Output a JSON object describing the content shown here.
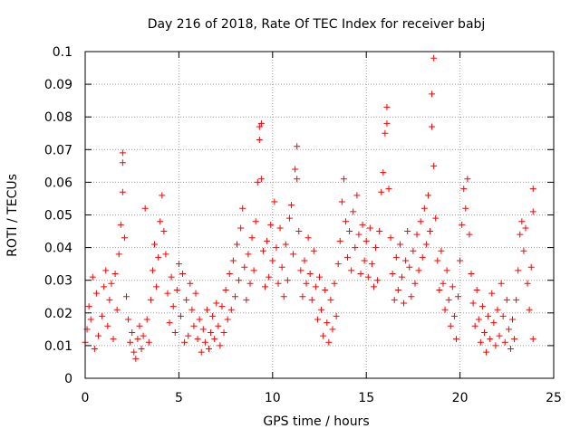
{
  "chart_data": {
    "type": "scatter",
    "title": "Day 216 of 2018, Rate Of TEC Index for receiver babj",
    "xlabel": "GPS time / hours",
    "ylabel": "ROTI / TECUs",
    "xlim": [
      0,
      25
    ],
    "ylim": [
      0,
      0.1
    ],
    "xticks": [
      0,
      5,
      10,
      15,
      20,
      25
    ],
    "xtick_labels": [
      "0",
      "5",
      "10",
      "15",
      "20",
      "25"
    ],
    "yticks": [
      0,
      0.01,
      0.02,
      0.03,
      0.04,
      0.05,
      0.06,
      0.07,
      0.08,
      0.09,
      0.1
    ],
    "ytick_labels": [
      "0",
      "0.01",
      "0.02",
      "0.03",
      "0.04",
      "0.05",
      "0.06",
      "0.07",
      "0.08",
      "0.09",
      "0.1"
    ],
    "grid": true,
    "marker": "+",
    "marker_color": "#ff0000",
    "series": [
      {
        "name": "ROTI",
        "points": [
          [
            0.0,
            0.011
          ],
          [
            0.1,
            0.015
          ],
          [
            0.2,
            0.022
          ],
          [
            0.3,
            0.018
          ],
          [
            0.4,
            0.031
          ],
          [
            0.5,
            0.009
          ],
          [
            0.6,
            0.026
          ],
          [
            0.7,
            0.013
          ],
          [
            0.9,
            0.019
          ],
          [
            1.0,
            0.028
          ],
          [
            1.1,
            0.033
          ],
          [
            1.2,
            0.016
          ],
          [
            1.3,
            0.024
          ],
          [
            1.4,
            0.029
          ],
          [
            1.5,
            0.012
          ],
          [
            1.6,
            0.032
          ],
          [
            1.7,
            0.021
          ],
          [
            1.8,
            0.038
          ],
          [
            1.9,
            0.047
          ],
          [
            2.0,
            0.066
          ],
          [
            2.0,
            0.069
          ],
          [
            2.0,
            0.057
          ],
          [
            2.1,
            0.043
          ],
          [
            2.2,
            0.025
          ],
          [
            2.3,
            0.018
          ],
          [
            2.4,
            0.011
          ],
          [
            2.5,
            0.014
          ],
          [
            2.6,
            0.008
          ],
          [
            2.7,
            0.006
          ],
          [
            2.8,
            0.012
          ],
          [
            2.9,
            0.016
          ],
          [
            3.0,
            0.009
          ],
          [
            3.1,
            0.013
          ],
          [
            3.2,
            0.052
          ],
          [
            3.3,
            0.018
          ],
          [
            3.4,
            0.011
          ],
          [
            3.5,
            0.024
          ],
          [
            3.6,
            0.033
          ],
          [
            3.7,
            0.041
          ],
          [
            3.8,
            0.028
          ],
          [
            3.9,
            0.037
          ],
          [
            4.0,
            0.048
          ],
          [
            4.1,
            0.056
          ],
          [
            4.2,
            0.045
          ],
          [
            4.3,
            0.038
          ],
          [
            4.4,
            0.026
          ],
          [
            4.5,
            0.017
          ],
          [
            4.6,
            0.031
          ],
          [
            4.7,
            0.022
          ],
          [
            4.8,
            0.014
          ],
          [
            4.9,
            0.027
          ],
          [
            5.0,
            0.035
          ],
          [
            5.1,
            0.019
          ],
          [
            5.2,
            0.032
          ],
          [
            5.3,
            0.011
          ],
          [
            5.4,
            0.024
          ],
          [
            5.5,
            0.013
          ],
          [
            5.6,
            0.029
          ],
          [
            5.7,
            0.021
          ],
          [
            5.8,
            0.016
          ],
          [
            5.9,
            0.026
          ],
          [
            6.0,
            0.012
          ],
          [
            6.1,
            0.018
          ],
          [
            6.2,
            0.008
          ],
          [
            6.3,
            0.015
          ],
          [
            6.4,
            0.011
          ],
          [
            6.5,
            0.021
          ],
          [
            6.6,
            0.009
          ],
          [
            6.7,
            0.014
          ],
          [
            6.8,
            0.019
          ],
          [
            6.9,
            0.012
          ],
          [
            7.0,
            0.023
          ],
          [
            7.1,
            0.016
          ],
          [
            7.2,
            0.01
          ],
          [
            7.3,
            0.022
          ],
          [
            7.4,
            0.014
          ],
          [
            7.5,
            0.027
          ],
          [
            7.6,
            0.018
          ],
          [
            7.7,
            0.032
          ],
          [
            7.8,
            0.021
          ],
          [
            7.9,
            0.036
          ],
          [
            8.0,
            0.025
          ],
          [
            8.1,
            0.041
          ],
          [
            8.2,
            0.03
          ],
          [
            8.3,
            0.046
          ],
          [
            8.4,
            0.052
          ],
          [
            8.5,
            0.034
          ],
          [
            8.6,
            0.024
          ],
          [
            8.7,
            0.038
          ],
          [
            8.8,
            0.029
          ],
          [
            8.9,
            0.043
          ],
          [
            9.0,
            0.033
          ],
          [
            9.1,
            0.048
          ],
          [
            9.2,
            0.06
          ],
          [
            9.3,
            0.073
          ],
          [
            9.3,
            0.077
          ],
          [
            9.4,
            0.078
          ],
          [
            9.4,
            0.061
          ],
          [
            9.5,
            0.039
          ],
          [
            9.6,
            0.028
          ],
          [
            9.7,
            0.042
          ],
          [
            9.8,
            0.031
          ],
          [
            9.9,
            0.047
          ],
          [
            10.0,
            0.036
          ],
          [
            10.1,
            0.054
          ],
          [
            10.2,
            0.04
          ],
          [
            10.3,
            0.029
          ],
          [
            10.4,
            0.046
          ],
          [
            10.5,
            0.034
          ],
          [
            10.6,
            0.025
          ],
          [
            10.7,
            0.041
          ],
          [
            10.8,
            0.03
          ],
          [
            10.9,
            0.049
          ],
          [
            11.0,
            0.053
          ],
          [
            11.1,
            0.038
          ],
          [
            11.2,
            0.064
          ],
          [
            11.3,
            0.071
          ],
          [
            11.3,
            0.061
          ],
          [
            11.4,
            0.045
          ],
          [
            11.5,
            0.033
          ],
          [
            11.6,
            0.025
          ],
          [
            11.7,
            0.036
          ],
          [
            11.8,
            0.029
          ],
          [
            11.9,
            0.043
          ],
          [
            12.0,
            0.032
          ],
          [
            12.1,
            0.024
          ],
          [
            12.2,
            0.039
          ],
          [
            12.3,
            0.028
          ],
          [
            12.4,
            0.018
          ],
          [
            12.5,
            0.031
          ],
          [
            12.6,
            0.021
          ],
          [
            12.7,
            0.013
          ],
          [
            12.8,
            0.027
          ],
          [
            12.9,
            0.017
          ],
          [
            13.0,
            0.011
          ],
          [
            13.1,
            0.024
          ],
          [
            13.2,
            0.015
          ],
          [
            13.3,
            0.029
          ],
          [
            13.4,
            0.019
          ],
          [
            13.5,
            0.035
          ],
          [
            13.6,
            0.042
          ],
          [
            13.7,
            0.054
          ],
          [
            13.8,
            0.061
          ],
          [
            13.9,
            0.048
          ],
          [
            14.0,
            0.037
          ],
          [
            14.1,
            0.045
          ],
          [
            14.2,
            0.033
          ],
          [
            14.3,
            0.051
          ],
          [
            14.4,
            0.04
          ],
          [
            14.5,
            0.056
          ],
          [
            14.6,
            0.044
          ],
          [
            14.7,
            0.032
          ],
          [
            14.8,
            0.047
          ],
          [
            14.9,
            0.036
          ],
          [
            15.0,
            0.042
          ],
          [
            15.1,
            0.031
          ],
          [
            15.2,
            0.046
          ],
          [
            15.3,
            0.035
          ],
          [
            15.4,
            0.028
          ],
          [
            15.5,
            0.04
          ],
          [
            15.6,
            0.03
          ],
          [
            15.7,
            0.045
          ],
          [
            15.8,
            0.057
          ],
          [
            15.9,
            0.063
          ],
          [
            16.0,
            0.075
          ],
          [
            16.1,
            0.083
          ],
          [
            16.1,
            0.078
          ],
          [
            16.2,
            0.058
          ],
          [
            16.3,
            0.043
          ],
          [
            16.4,
            0.032
          ],
          [
            16.5,
            0.024
          ],
          [
            16.6,
            0.037
          ],
          [
            16.7,
            0.027
          ],
          [
            16.8,
            0.041
          ],
          [
            16.9,
            0.031
          ],
          [
            17.0,
            0.023
          ],
          [
            17.1,
            0.036
          ],
          [
            17.2,
            0.045
          ],
          [
            17.3,
            0.034
          ],
          [
            17.4,
            0.025
          ],
          [
            17.5,
            0.039
          ],
          [
            17.6,
            0.029
          ],
          [
            17.7,
            0.044
          ],
          [
            17.8,
            0.033
          ],
          [
            17.9,
            0.048
          ],
          [
            18.0,
            0.037
          ],
          [
            18.1,
            0.052
          ],
          [
            18.2,
            0.041
          ],
          [
            18.3,
            0.056
          ],
          [
            18.4,
            0.045
          ],
          [
            18.5,
            0.077
          ],
          [
            18.5,
            0.087
          ],
          [
            18.6,
            0.098
          ],
          [
            18.6,
            0.065
          ],
          [
            18.7,
            0.049
          ],
          [
            18.8,
            0.036
          ],
          [
            18.9,
            0.027
          ],
          [
            19.0,
            0.039
          ],
          [
            19.1,
            0.029
          ],
          [
            19.2,
            0.021
          ],
          [
            19.3,
            0.033
          ],
          [
            19.4,
            0.024
          ],
          [
            19.5,
            0.016
          ],
          [
            19.6,
            0.028
          ],
          [
            19.7,
            0.019
          ],
          [
            19.8,
            0.012
          ],
          [
            19.9,
            0.025
          ],
          [
            20.0,
            0.036
          ],
          [
            20.1,
            0.047
          ],
          [
            20.2,
            0.058
          ],
          [
            20.3,
            0.052
          ],
          [
            20.4,
            0.061
          ],
          [
            20.5,
            0.044
          ],
          [
            20.6,
            0.032
          ],
          [
            20.7,
            0.023
          ],
          [
            20.8,
            0.016
          ],
          [
            20.9,
            0.027
          ],
          [
            21.0,
            0.018
          ],
          [
            21.1,
            0.011
          ],
          [
            21.2,
            0.022
          ],
          [
            21.3,
            0.014
          ],
          [
            21.4,
            0.008
          ],
          [
            21.5,
            0.019
          ],
          [
            21.6,
            0.012
          ],
          [
            21.7,
            0.026
          ],
          [
            21.8,
            0.017
          ],
          [
            21.9,
            0.01
          ],
          [
            22.0,
            0.021
          ],
          [
            22.1,
            0.013
          ],
          [
            22.2,
            0.029
          ],
          [
            22.3,
            0.019
          ],
          [
            22.4,
            0.011
          ],
          [
            22.5,
            0.024
          ],
          [
            22.6,
            0.015
          ],
          [
            22.7,
            0.009
          ],
          [
            22.8,
            0.018
          ],
          [
            22.9,
            0.012
          ],
          [
            23.0,
            0.024
          ],
          [
            23.1,
            0.033
          ],
          [
            23.2,
            0.044
          ],
          [
            23.3,
            0.048
          ],
          [
            23.4,
            0.039
          ],
          [
            23.5,
            0.046
          ],
          [
            23.6,
            0.029
          ],
          [
            23.7,
            0.021
          ],
          [
            23.8,
            0.034
          ],
          [
            23.9,
            0.058
          ],
          [
            23.9,
            0.051
          ],
          [
            23.9,
            0.012
          ]
        ]
      }
    ]
  }
}
